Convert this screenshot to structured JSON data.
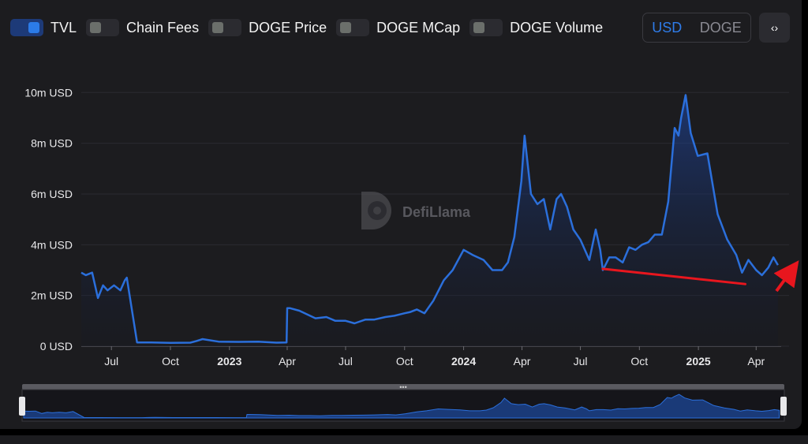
{
  "toggles": [
    {
      "label": "TVL",
      "on": true
    },
    {
      "label": "Chain Fees",
      "on": false
    },
    {
      "label": "DOGE Price",
      "on": false
    },
    {
      "label": "DOGE MCap",
      "on": false
    },
    {
      "label": "DOGE Volume",
      "on": false
    }
  ],
  "currency": {
    "options": [
      "USD",
      "DOGE"
    ],
    "selected": "USD"
  },
  "embed_icon": "code-icon",
  "watermark": "DefiLlama",
  "colors": {
    "line": "#2b6fdb",
    "annotation": "#e8161e",
    "accent": "#2f7ce9"
  },
  "chart_data": {
    "type": "area",
    "series": [
      {
        "name": "TVL",
        "x": [
          "2022-05-15",
          "2022-05-22",
          "2022-06-01",
          "2022-06-10",
          "2022-06-18",
          "2022-06-25",
          "2022-07-05",
          "2022-07-15",
          "2022-07-22",
          "2022-07-25",
          "2022-08-10",
          "2022-09-01",
          "2022-10-01",
          "2022-11-01",
          "2022-11-10",
          "2022-11-20",
          "2022-12-15",
          "2023-01-15",
          "2023-02-15",
          "2023-03-15",
          "2023-03-31",
          "2023-04-01",
          "2023-04-05",
          "2023-04-20",
          "2023-05-15",
          "2023-06-01",
          "2023-06-15",
          "2023-07-01",
          "2023-07-15",
          "2023-08-01",
          "2023-08-15",
          "2023-09-01",
          "2023-09-15",
          "2023-10-01",
          "2023-10-10",
          "2023-10-20",
          "2023-11-01",
          "2023-11-15",
          "2023-12-01",
          "2023-12-15",
          "2024-01-01",
          "2024-01-15",
          "2024-02-01",
          "2024-02-15",
          "2024-03-01",
          "2024-03-10",
          "2024-03-20",
          "2024-03-31",
          "2024-04-05",
          "2024-04-15",
          "2024-04-25",
          "2024-05-05",
          "2024-05-15",
          "2024-05-25",
          "2024-06-01",
          "2024-06-10",
          "2024-06-20",
          "2024-07-01",
          "2024-07-15",
          "2024-07-25",
          "2024-08-01",
          "2024-08-05",
          "2024-08-15",
          "2024-08-25",
          "2024-09-05",
          "2024-09-15",
          "2024-09-25",
          "2024-10-05",
          "2024-10-15",
          "2024-10-25",
          "2024-11-05",
          "2024-11-15",
          "2024-11-25",
          "2024-12-01",
          "2024-12-05",
          "2024-12-12",
          "2024-12-20",
          "2024-12-31",
          "2025-01-15",
          "2025-01-31",
          "2025-02-15",
          "2025-03-01",
          "2025-03-10",
          "2025-03-20",
          "2025-04-01",
          "2025-04-10",
          "2025-04-20",
          "2025-04-28",
          "2025-05-05"
        ],
        "values": [
          2.9,
          2.8,
          2.9,
          1.9,
          2.4,
          2.2,
          2.4,
          2.2,
          2.6,
          2.7,
          0.15,
          0.15,
          0.13,
          0.14,
          0.2,
          0.28,
          0.18,
          0.17,
          0.18,
          0.14,
          0.15,
          1.5,
          1.5,
          1.4,
          1.1,
          1.15,
          1.0,
          1.0,
          0.9,
          1.05,
          1.05,
          1.15,
          1.2,
          1.3,
          1.35,
          1.45,
          1.3,
          1.8,
          2.6,
          3.0,
          3.8,
          3.6,
          3.4,
          3.0,
          3.0,
          3.3,
          4.3,
          6.5,
          8.3,
          6.0,
          5.6,
          5.8,
          4.6,
          5.8,
          6.0,
          5.5,
          4.6,
          4.2,
          3.4,
          4.6,
          3.8,
          3.0,
          3.5,
          3.5,
          3.3,
          3.9,
          3.8,
          4.0,
          4.1,
          4.4,
          4.4,
          5.7,
          8.6,
          8.3,
          9.0,
          9.9,
          8.4,
          7.5,
          7.6,
          5.2,
          4.2,
          3.6,
          2.9,
          3.4,
          3.0,
          2.8,
          3.1,
          3.5,
          3.2
        ]
      }
    ],
    "yticks": [
      "0 USD",
      "2m USD",
      "4m USD",
      "6m USD",
      "8m USD",
      "10m USD"
    ],
    "yvalues": [
      0,
      2,
      4,
      6,
      8,
      10
    ],
    "ylim": [
      0,
      10.6
    ],
    "xticks": [
      {
        "label": "Jul",
        "date": "2022-07-01",
        "year": false
      },
      {
        "label": "Oct",
        "date": "2022-10-01",
        "year": false
      },
      {
        "label": "2023",
        "date": "2023-01-01",
        "year": true
      },
      {
        "label": "Apr",
        "date": "2023-04-01",
        "year": false
      },
      {
        "label": "Jul",
        "date": "2023-07-01",
        "year": false
      },
      {
        "label": "Oct",
        "date": "2023-10-01",
        "year": false
      },
      {
        "label": "2024",
        "date": "2024-01-01",
        "year": true
      },
      {
        "label": "Apr",
        "date": "2024-04-01",
        "year": false
      },
      {
        "label": "Jul",
        "date": "2024-07-01",
        "year": false
      },
      {
        "label": "Oct",
        "date": "2024-10-01",
        "year": false
      },
      {
        "label": "2025",
        "date": "2025-01-01",
        "year": true
      },
      {
        "label": "Apr",
        "date": "2025-04-01",
        "year": false
      }
    ],
    "x_range": [
      "2022-05-15",
      "2025-05-10"
    ],
    "annotation_line": {
      "from": {
        "date": "2024-08-05",
        "value": 3.05
      },
      "to": {
        "date": "2025-03-15",
        "value": 2.45
      }
    },
    "legend": "none",
    "grid": true
  }
}
